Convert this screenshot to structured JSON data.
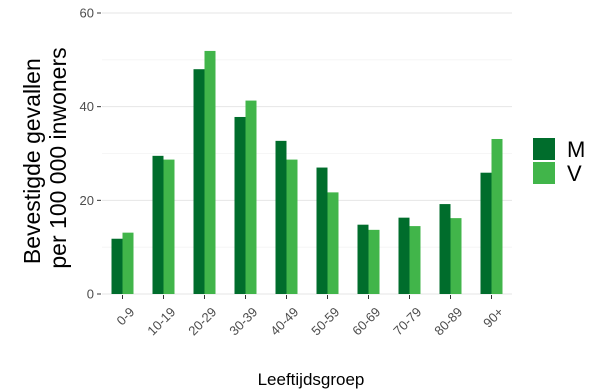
{
  "chart_data": {
    "type": "bar",
    "xlabel": "Leeftijdsgroep",
    "ylabel_lines": [
      "Bevestigde gevallen",
      "per 100 000 inwoners"
    ],
    "categories": [
      "0-9",
      "10-19",
      "20-29",
      "30-39",
      "40-49",
      "50-59",
      "60-69",
      "70-79",
      "80-89",
      "90+"
    ],
    "series": [
      {
        "name": "M",
        "color": "#006d2c",
        "values": [
          11.8,
          29.5,
          48,
          37.8,
          32.7,
          27,
          14.8,
          16.3,
          19.2,
          25.9
        ]
      },
      {
        "name": "V",
        "color": "#41b54a",
        "values": [
          13.1,
          28.7,
          51.9,
          41.3,
          28.7,
          21.7,
          13.7,
          14.5,
          16.2,
          33.1
        ]
      }
    ],
    "ylim": [
      0,
      60
    ],
    "yticks": [
      0,
      20,
      40,
      60
    ],
    "grid": true,
    "legend_position": "right"
  }
}
